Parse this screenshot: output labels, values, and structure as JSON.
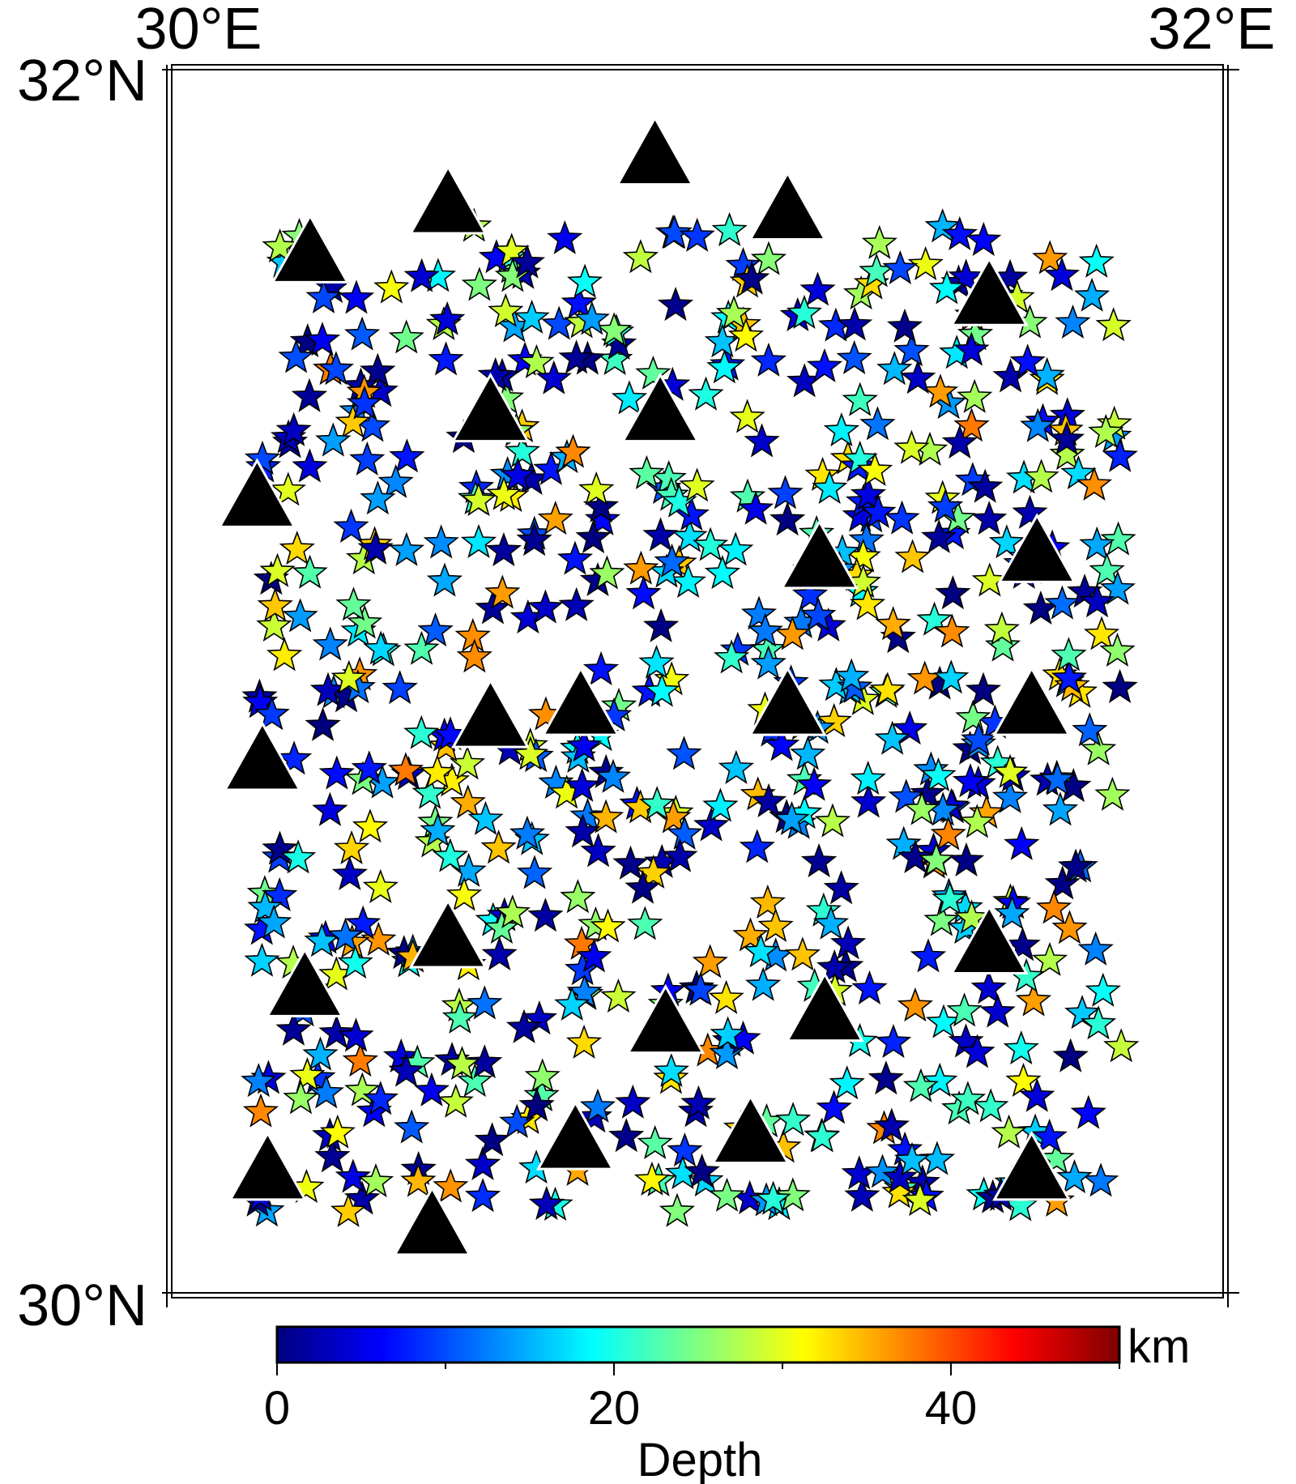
{
  "map": {
    "lon_range": [
      30,
      32
    ],
    "lat_range": [
      30,
      32
    ],
    "labels": {
      "lon_left": "30°E",
      "lon_right": "32°E",
      "lat_top": "32°N",
      "lat_bottom": "30°N"
    }
  },
  "colorbar": {
    "range": [
      0,
      50
    ],
    "ticks": [
      {
        "value": 0,
        "label": "0"
      },
      {
        "value": 20,
        "label": "20"
      },
      {
        "value": 40,
        "label": "40"
      }
    ],
    "minor_ticks": [
      10,
      30,
      50
    ],
    "unit": "km",
    "title": "Depth",
    "colormap": "jet",
    "colors": [
      "#00007f",
      "#0000ff",
      "#007fff",
      "#00ffff",
      "#7fff7f",
      "#ffff00",
      "#ff7f00",
      "#ff0000",
      "#7f0000"
    ]
  },
  "chart_data": {
    "type": "scatter",
    "series": [
      {
        "name": "",
        "marker": "star",
        "color_by": "depth",
        "generator": {
          "count": 700,
          "lon_range": [
            30.17,
            31.8
          ],
          "lat_range": [
            30.13,
            31.75
          ],
          "depth_range": [
            0,
            38
          ]
        }
      },
      {
        "name": "",
        "marker": "triangle",
        "color": "#000000",
        "points": [
          {
            "lon": 30.27,
            "lat": 31.7
          },
          {
            "lon": 30.53,
            "lat": 31.78
          },
          {
            "lon": 30.92,
            "lat": 31.86
          },
          {
            "lon": 31.17,
            "lat": 31.77
          },
          {
            "lon": 31.55,
            "lat": 31.63
          },
          {
            "lon": 30.61,
            "lat": 31.44
          },
          {
            "lon": 30.93,
            "lat": 31.44
          },
          {
            "lon": 30.17,
            "lat": 31.3
          },
          {
            "lon": 31.23,
            "lat": 31.2
          },
          {
            "lon": 31.64,
            "lat": 31.21
          },
          {
            "lon": 30.78,
            "lat": 30.96
          },
          {
            "lon": 31.17,
            "lat": 30.96
          },
          {
            "lon": 31.63,
            "lat": 30.96
          },
          {
            "lon": 30.61,
            "lat": 30.94
          },
          {
            "lon": 30.18,
            "lat": 30.87
          },
          {
            "lon": 30.53,
            "lat": 30.58
          },
          {
            "lon": 31.55,
            "lat": 30.57
          },
          {
            "lon": 30.26,
            "lat": 30.5
          },
          {
            "lon": 31.24,
            "lat": 30.46
          },
          {
            "lon": 30.94,
            "lat": 30.44
          },
          {
            "lon": 30.77,
            "lat": 30.25
          },
          {
            "lon": 31.1,
            "lat": 30.26
          },
          {
            "lon": 30.19,
            "lat": 30.2
          },
          {
            "lon": 31.63,
            "lat": 30.2
          },
          {
            "lon": 30.5,
            "lat": 30.11
          }
        ]
      }
    ]
  }
}
